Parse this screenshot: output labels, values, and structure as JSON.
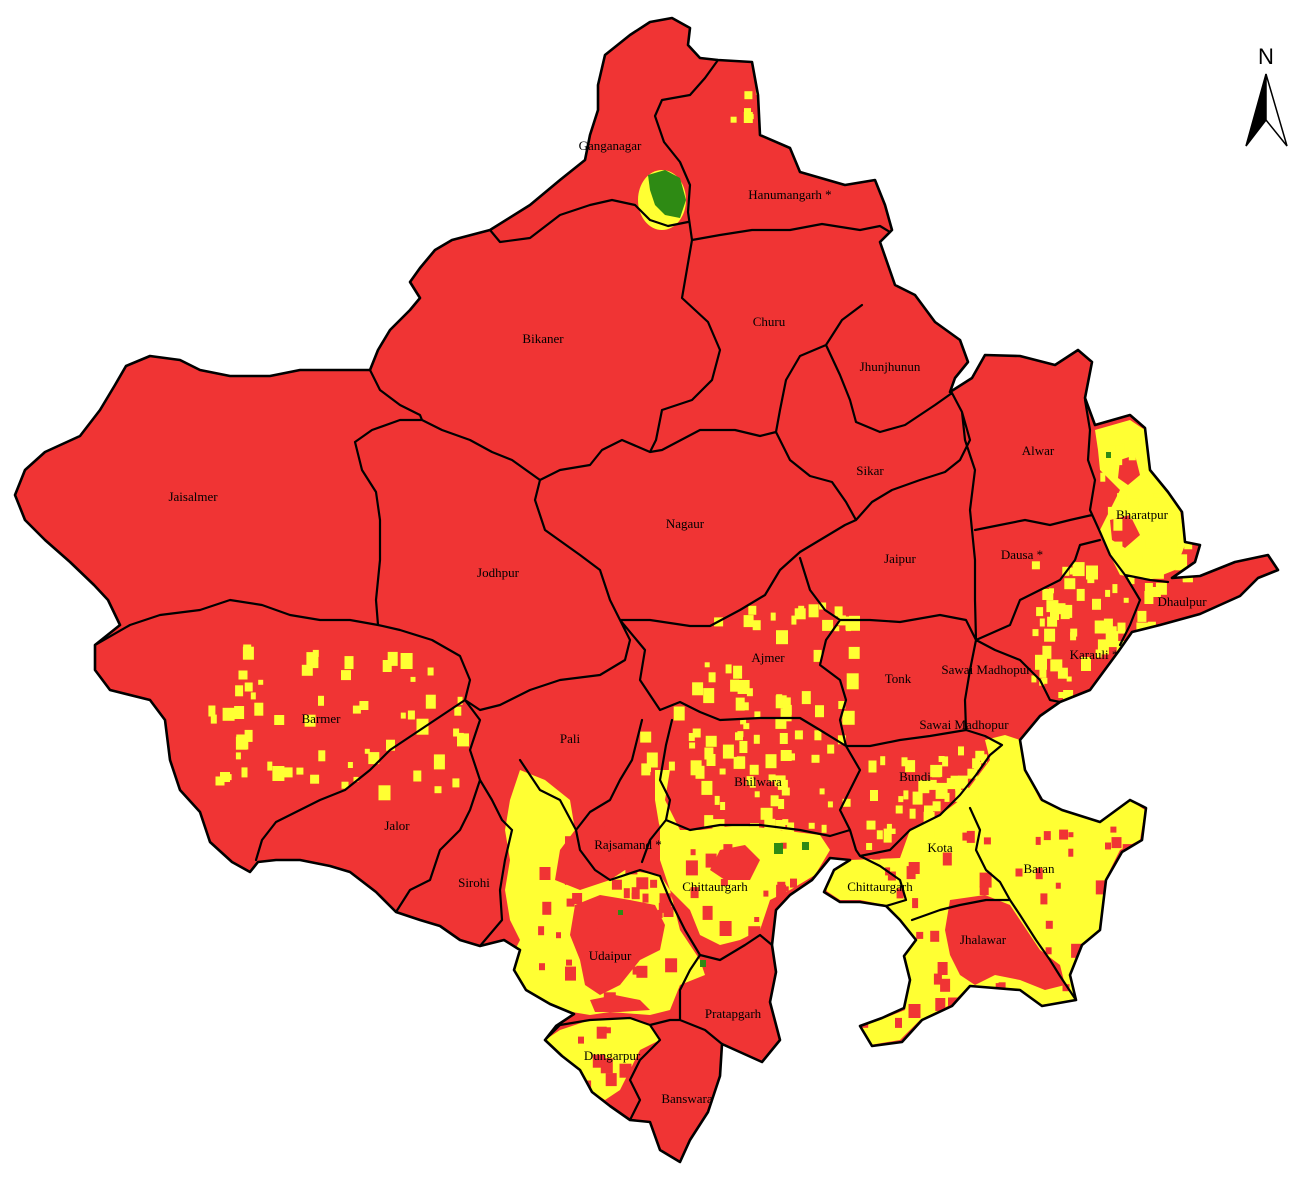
{
  "map": {
    "north_label": "N",
    "districts": [
      "Ganganagar",
      "Hanumangarh *",
      "Bikaner",
      "Churu",
      "Jhunjhunun",
      "Jaisalmer",
      "Alwar",
      "Sikar",
      "Bharatpur",
      "Nagaur",
      "Jodhpur",
      "Jaipur",
      "Dausa *",
      "Dhaulpur",
      "Ajmer",
      "Tonk",
      "Sawai Madhopur",
      "Karauli *",
      "Sawai Madhopur",
      "Barmer",
      "Pali",
      "Bhilwara",
      "Bundi",
      "Jalor",
      "Rajsamand *",
      "Kota",
      "Sirohi",
      "Chittaurgarh",
      "Chittaurgarh",
      "Baran",
      "Udaipur",
      "Jhalawar",
      "Pratapgarh",
      "Dungarpur",
      "Banswara"
    ],
    "colors": {
      "red": "#F03434",
      "yellow": "#FFFF33",
      "green": "#2E8A14",
      "boundary": "#000000"
    }
  }
}
